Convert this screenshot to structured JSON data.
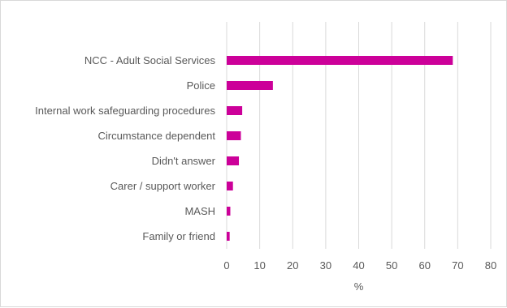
{
  "chart_data": {
    "type": "bar",
    "orientation": "horizontal",
    "categories": [
      "NCC - Adult Social Services",
      "Police",
      "Internal work safeguarding procedures",
      "Circumstance dependent",
      "Didn't answer",
      "Carer / support worker",
      "MASH",
      "Family or friend"
    ],
    "values": [
      68.5,
      14,
      4.7,
      4.3,
      3.7,
      1.9,
      1.1,
      0.9
    ],
    "xlabel": "%",
    "ylabel": "",
    "xlim": [
      0,
      80
    ],
    "xticks": [
      0,
      10,
      20,
      30,
      40,
      50,
      60,
      70,
      80
    ],
    "grid": "vertical",
    "legend": "none",
    "bar_color": "#cc0099"
  }
}
